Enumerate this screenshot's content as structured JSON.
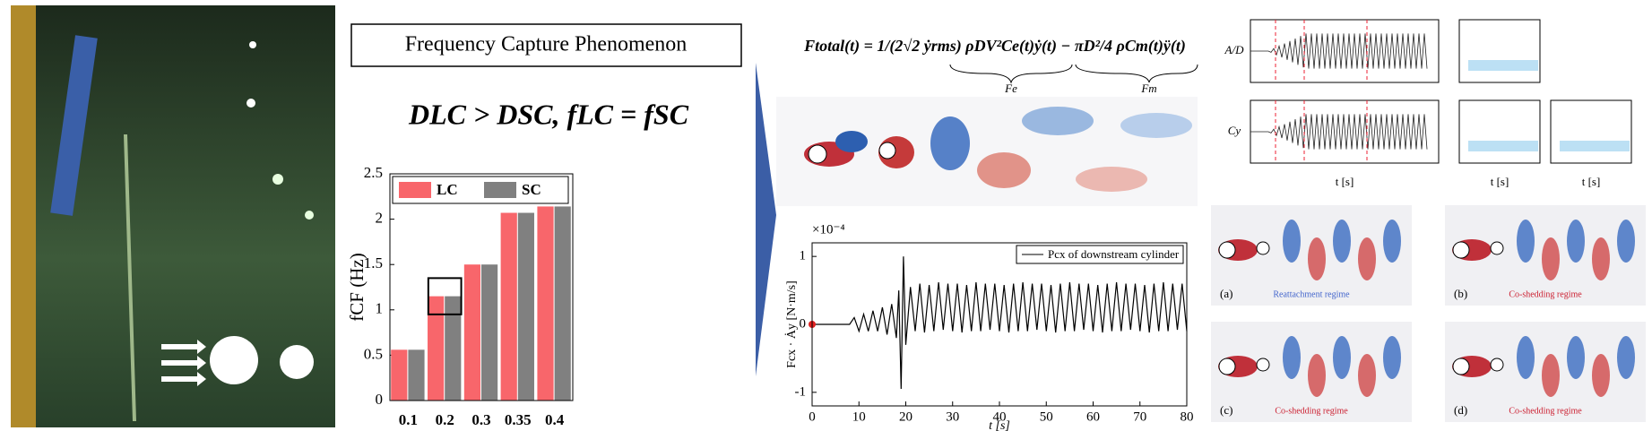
{
  "figure": {
    "title_box": "Frequency Capture Phenomenon",
    "relation": "DLC > DSC, fLC = fSC",
    "force_equation": "Ftotal(t) = 1/(2√2 ẏrms) ρDV²Ce(t)ẏ(t) − πD²/4 ρCm(t)ÿ(t)",
    "equation_terms": [
      "Fe",
      "Fm"
    ],
    "panel_ylabels": [
      "A/D",
      "Cy"
    ],
    "panel_xlabel": "t [s]",
    "regime_captions": [
      "(a)",
      "(b)",
      "(c)",
      "(d)"
    ],
    "regime_names": [
      "Reattachment regime",
      "Co-shedding regime",
      "Co-shedding regime",
      "Co-shedding regime"
    ]
  },
  "chart_data": [
    {
      "type": "bar",
      "ylabel": "fCF (Hz)",
      "categories": [
        "0.1",
        "0.2",
        "0.3",
        "0.35",
        "0.4"
      ],
      "series": [
        {
          "name": "LC",
          "color": "#f8666b",
          "values": [
            0.56,
            1.15,
            1.5,
            2.07,
            2.14
          ]
        },
        {
          "name": "SC",
          "color": "#808080",
          "values": [
            0.56,
            1.15,
            1.5,
            2.07,
            2.14
          ]
        }
      ],
      "ylim": [
        0,
        2.5
      ],
      "yticks": [
        0,
        0.5,
        1,
        1.5,
        2,
        2.5
      ],
      "legend": "upper left"
    },
    {
      "type": "line",
      "xlabel": "t [s]",
      "ylabel": "Fcx · Ȧy [N·m/s]",
      "y_multiplier": "×10⁻⁴",
      "x": [
        0,
        8,
        9,
        10,
        11,
        12,
        13,
        14,
        15,
        16,
        17,
        18,
        18.5,
        19,
        19.5,
        20,
        21,
        22,
        23,
        24,
        25,
        26,
        27,
        28,
        29,
        30,
        31,
        32,
        33,
        34,
        35,
        36,
        37,
        38,
        39,
        40,
        41,
        42,
        43,
        44,
        45,
        46,
        47,
        48,
        49,
        50,
        51,
        52,
        53,
        54,
        55,
        56,
        57,
        58,
        59,
        60,
        61,
        62,
        63,
        64,
        65,
        66,
        67,
        68,
        69,
        70,
        71,
        72,
        73,
        74,
        75,
        76,
        77,
        78,
        79,
        80
      ],
      "series": [
        {
          "name": "Pcx of downstream cylinder",
          "color": "#000000",
          "values": [
            0,
            0,
            0.1,
            -0.1,
            0.15,
            -0.1,
            0.2,
            -0.1,
            0.25,
            -0.15,
            0.3,
            -0.2,
            0.5,
            -0.95,
            1.0,
            -0.3,
            0.55,
            -0.1,
            0.6,
            -0.12,
            0.58,
            -0.1,
            0.62,
            -0.08,
            0.6,
            -0.1,
            0.6,
            -0.12,
            0.58,
            -0.1,
            0.62,
            -0.1,
            0.6,
            -0.08,
            0.6,
            -0.1,
            0.58,
            -0.12,
            0.6,
            -0.1,
            0.62,
            -0.1,
            0.6,
            -0.08,
            0.6,
            -0.1,
            0.58,
            -0.12,
            0.6,
            -0.1,
            0.62,
            -0.1,
            0.6,
            -0.08,
            0.6,
            -0.1,
            0.58,
            -0.12,
            0.6,
            -0.1,
            0.62,
            -0.1,
            0.6,
            -0.08,
            0.6,
            -0.1,
            0.58,
            -0.12,
            0.6,
            -0.1,
            0.62,
            -0.1,
            0.6,
            -0.08,
            0.6,
            -0.1
          ]
        }
      ],
      "xlim": [
        0,
        80
      ],
      "xticks": [
        0,
        10,
        20,
        30,
        40,
        50,
        60,
        70,
        80
      ],
      "ylim": [
        -1.2,
        1.2
      ],
      "yticks": [
        -1,
        0,
        1
      ],
      "legend": "upper right"
    }
  ]
}
